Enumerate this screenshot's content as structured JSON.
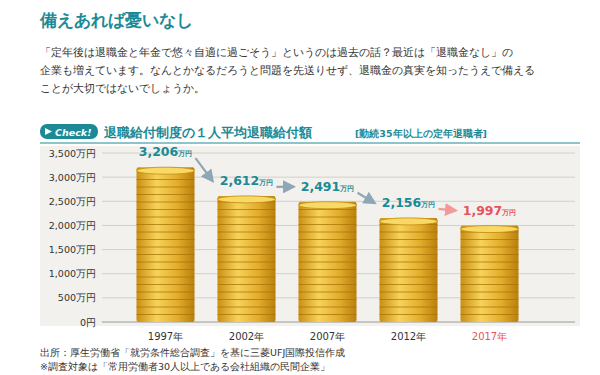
{
  "header": {
    "title": "備えあれば憂いなし",
    "paragraph": [
      "「定年後は退職金と年金で悠々自適に過ごそう」というのは過去の話？最近は「退職金なし」の",
      "企業も増えています。なんとかなるだろうと問題を先送りせず、退職金の真実を知ったうえで備える",
      "ことが大切ではないでしょうか。"
    ]
  },
  "badge": "Check!",
  "chart_data": {
    "type": "bar",
    "title": "退職給付制度の１人平均退職給付額",
    "subtitle": "[勤続35年以上の定年退職者]",
    "categories": [
      "1997年",
      "2002年",
      "2007年",
      "2012年",
      "2017年"
    ],
    "values": [
      3206,
      2612,
      2491,
      2156,
      1997
    ],
    "value_labels": [
      "3,206万円",
      "2,612万円",
      "2,491万円",
      "2,156万円",
      "1,997万円"
    ],
    "data_labels": true,
    "color": "#e3ad2c",
    "ylim": [
      0,
      3500
    ],
    "yticks": [
      {
        "value": 0,
        "label": "0円"
      },
      {
        "value": 500,
        "label": "500万円"
      },
      {
        "value": 1000,
        "label": "1,000万円"
      },
      {
        "value": 1500,
        "label": "1,500万円"
      },
      {
        "value": 2000,
        "label": "2,000万円"
      },
      {
        "value": 2500,
        "label": "2,500万円"
      },
      {
        "value": 3000,
        "label": "3,000万円"
      },
      {
        "value": 3500,
        "label": "3,500万円"
      }
    ],
    "grid": true,
    "annotations": [
      "出所：厚生労働省「就労条件総合調査」を基に三菱UFJ国際投信作成",
      "※調査対象は「常用労働者30人以上である会社組織の民間企業」"
    ]
  }
}
